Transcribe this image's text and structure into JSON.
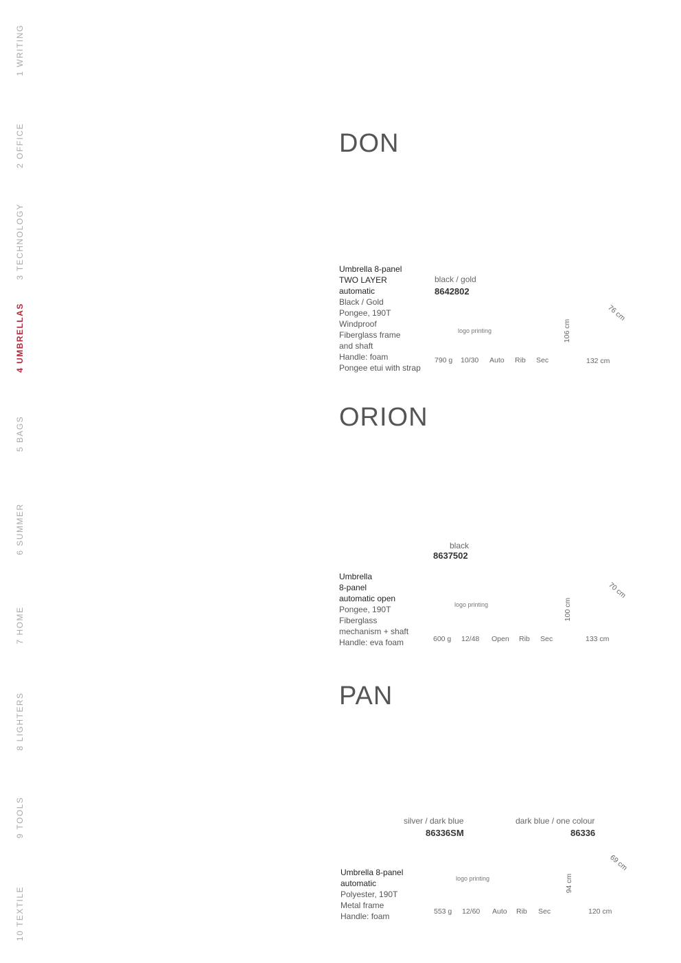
{
  "nav": {
    "items": [
      {
        "label": "1 WRITING"
      },
      {
        "label": "2 OFFICE"
      },
      {
        "label": "3 TECHNOLOGY"
      },
      {
        "label": "4 UMBRELLAS",
        "active": true
      },
      {
        "label": "5 BAGS"
      },
      {
        "label": "6 SUMMER"
      },
      {
        "label": "7 HOME"
      },
      {
        "label": "8 LIGHTERS"
      },
      {
        "label": "9 TOOLS"
      },
      {
        "label": "10 TEXTILE"
      }
    ],
    "active_color": "#b22a3c"
  },
  "products": [
    {
      "title": "DON",
      "description": [
        "Umbrella 8-panel",
        "TWO LAYER",
        "automatic",
        "Black / Gold",
        "Pongee, 190T",
        "Windproof",
        "Fiberglass frame",
        "and shaft",
        "Handle: foam",
        "Pongee etui with strap"
      ],
      "variants": [
        {
          "color": "black / gold",
          "code": "8642802"
        }
      ],
      "logo_printing": "logo printing",
      "specs": [
        "790 g",
        "10/30",
        "Auto",
        "Rib",
        "Sec"
      ],
      "dimensions": {
        "height": "106 cm",
        "diameter": "132 cm",
        "length": "76 cm"
      }
    },
    {
      "title": "ORION",
      "description": [
        "Umbrella",
        "8-panel",
        "automatic open",
        "Pongee, 190T",
        "Fiberglass",
        "mechanism + shaft",
        "Handle: eva foam"
      ],
      "variants": [
        {
          "color": "black",
          "code": "8637502"
        }
      ],
      "logo_printing": "logo printing",
      "specs": [
        "600 g",
        "12/48",
        "Open",
        "Rib",
        "Sec"
      ],
      "dimensions": {
        "height": "100 cm",
        "diameter": "133 cm",
        "length": "70 cm"
      }
    },
    {
      "title": "PAN",
      "description": [
        "Umbrella 8-panel",
        "automatic",
        "Polyester, 190T",
        "Metal frame",
        "Handle: foam"
      ],
      "variants": [
        {
          "color": "silver / dark blue",
          "code": "86336SM"
        },
        {
          "color": "dark blue / one colour",
          "code": "86336"
        }
      ],
      "logo_printing": "logo printing",
      "specs": [
        "553 g",
        "12/60",
        "Auto",
        "Rib",
        "Sec"
      ],
      "dimensions": {
        "height": "94 cm",
        "diameter": "120 cm",
        "length": "69 cm"
      }
    }
  ]
}
